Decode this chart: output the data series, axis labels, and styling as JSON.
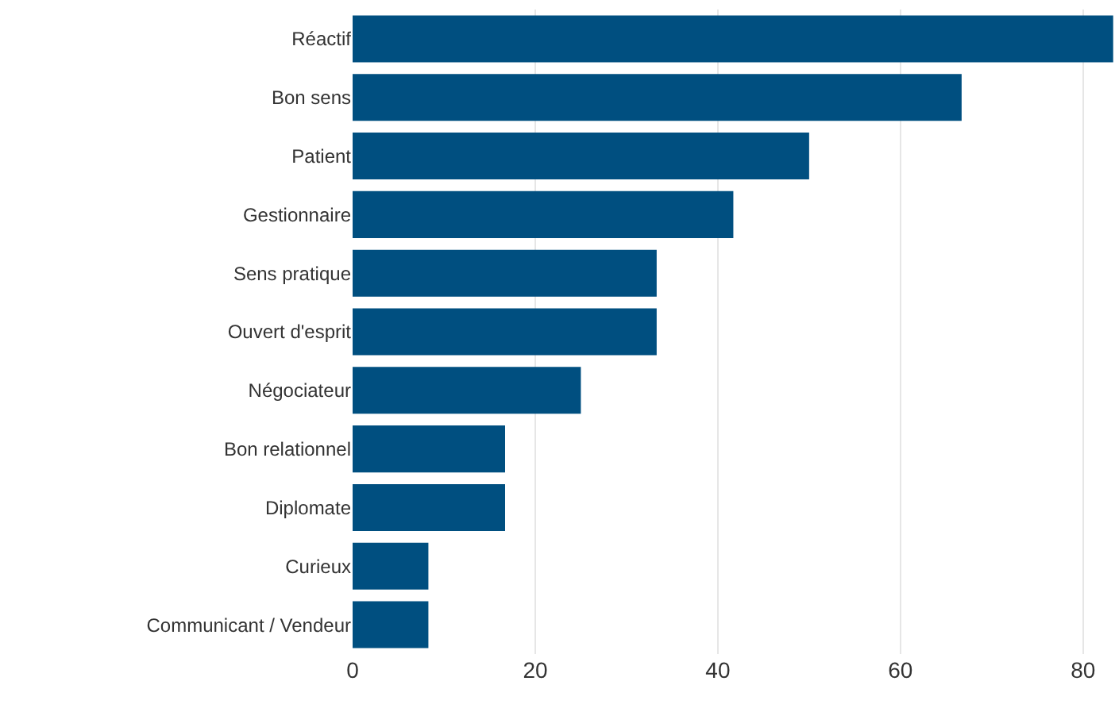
{
  "chart_data": {
    "type": "bar",
    "orientation": "horizontal",
    "categories": [
      "Réactif",
      "Bon sens",
      "Patient",
      "Gestionnaire",
      "Sens pratique",
      "Ouvert d'esprit",
      "Négociateur",
      "Bon relationnel",
      "Diplomate",
      "Curieux",
      "Communicant / Vendeur"
    ],
    "values": [
      83.3,
      66.7,
      50,
      41.7,
      33.3,
      33.3,
      25,
      16.7,
      16.7,
      8.3,
      8.3
    ],
    "color": "#004f80",
    "xlim": [
      0,
      83.5
    ],
    "xticks": [
      0,
      20,
      40,
      60,
      80
    ],
    "grid": "x"
  }
}
